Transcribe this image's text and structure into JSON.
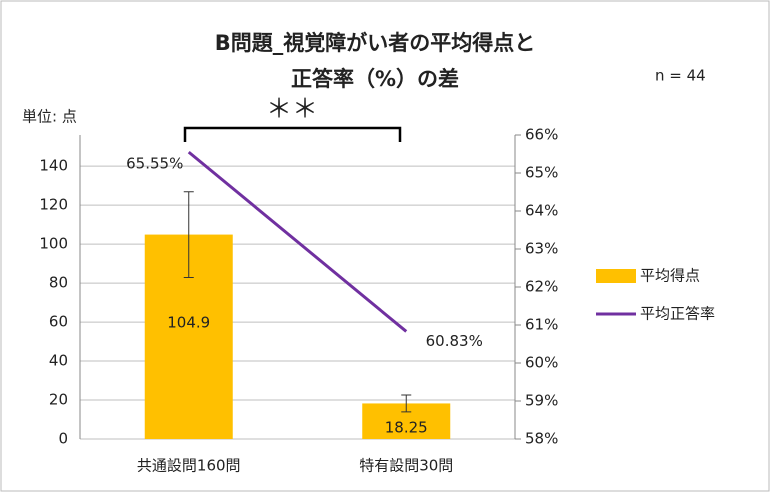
{
  "chart_data": {
    "type": "bar_line",
    "title": [
      "B問題_視覚障がい者の平均得点と",
      "正答率（%）の差"
    ],
    "annotations": [
      "n = 44",
      "単位: 点",
      "＊＊"
    ],
    "categories": [
      "共通設問160問",
      "特有設問30問"
    ],
    "series": [
      {
        "name": "平均得点",
        "type": "bar",
        "color": "#ffc000",
        "values": [
          104.9,
          18.25
        ],
        "errors": [
          22,
          4.3
        ]
      },
      {
        "name": "平均正答率",
        "type": "line",
        "axis": "y2",
        "color": "#7030a0",
        "values": [
          65.55,
          60.83
        ],
        "value_labels": [
          "65.55%",
          "60.83%"
        ]
      }
    ],
    "ylim": [
      0,
      156
    ],
    "yticks": [
      0,
      20,
      40,
      60,
      80,
      100,
      120,
      140
    ],
    "y2lim": [
      58,
      66
    ],
    "y2ticks": [
      {
        "value": 58,
        "label": "58%"
      },
      {
        "value": 59,
        "label": "59%"
      },
      {
        "value": 60,
        "label": "60%"
      },
      {
        "value": 61,
        "label": "61%"
      },
      {
        "value": 62,
        "label": "62%"
      },
      {
        "value": 63,
        "label": "63%"
      },
      {
        "value": 64,
        "label": "64%"
      },
      {
        "value": 65,
        "label": "65%"
      },
      {
        "value": 66,
        "label": "66%"
      }
    ],
    "grid": true,
    "legend": "right"
  }
}
